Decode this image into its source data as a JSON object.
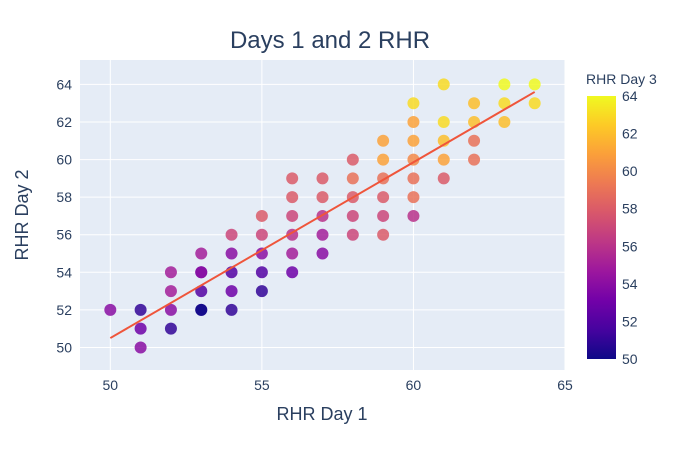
{
  "chart_data": {
    "type": "scatter",
    "title": "Days 1 and 2 RHR",
    "xlabel": "RHR Day 1",
    "ylabel": "RHR Day 2",
    "xlim": [
      49,
      65
    ],
    "ylim": [
      48.8,
      65.3
    ],
    "x_ticks": [
      50,
      55,
      60,
      65
    ],
    "y_ticks": [
      50,
      52,
      54,
      56,
      58,
      60,
      62,
      64
    ],
    "grid": true,
    "colorbar": {
      "title": "RHR Day 3",
      "range": [
        50,
        64
      ],
      "ticks": [
        50,
        52,
        54,
        56,
        58,
        60,
        62,
        64
      ],
      "colorscale": [
        "#0d0887",
        "#46039f",
        "#7201a8",
        "#9c179e",
        "#bd3786",
        "#d8576b",
        "#ed7953",
        "#fb9f3a",
        "#fdca26",
        "#f0f921"
      ]
    },
    "trendline": {
      "x": [
        50,
        64
      ],
      "y": [
        50.5,
        63.6
      ],
      "color": "#ef553b"
    },
    "points": [
      [
        50,
        52,
        54
      ],
      [
        51,
        52,
        51
      ],
      [
        51,
        51,
        53
      ],
      [
        51,
        50,
        54
      ],
      [
        52,
        54,
        55
      ],
      [
        52,
        53,
        55
      ],
      [
        52,
        52,
        54
      ],
      [
        52,
        51,
        51
      ],
      [
        53,
        55,
        55
      ],
      [
        53,
        54,
        53
      ],
      [
        53,
        54,
        54
      ],
      [
        53,
        53,
        52
      ],
      [
        53,
        52,
        51
      ],
      [
        53,
        52,
        50
      ],
      [
        54,
        56,
        57
      ],
      [
        54,
        55,
        54
      ],
      [
        54,
        54,
        52
      ],
      [
        54,
        53,
        53
      ],
      [
        54,
        52,
        51
      ],
      [
        55,
        57,
        58
      ],
      [
        55,
        56,
        57
      ],
      [
        55,
        55,
        54
      ],
      [
        55,
        54,
        52
      ],
      [
        55,
        53,
        51
      ],
      [
        56,
        59,
        58
      ],
      [
        56,
        58,
        58
      ],
      [
        56,
        57,
        57
      ],
      [
        56,
        56,
        56
      ],
      [
        56,
        55,
        55
      ],
      [
        56,
        54,
        53
      ],
      [
        57,
        59,
        58
      ],
      [
        57,
        58,
        58
      ],
      [
        57,
        57,
        56
      ],
      [
        57,
        56,
        55
      ],
      [
        57,
        55,
        54
      ],
      [
        58,
        60,
        58
      ],
      [
        58,
        59,
        59
      ],
      [
        58,
        58,
        58
      ],
      [
        58,
        57,
        57
      ],
      [
        58,
        56,
        57
      ],
      [
        59,
        61,
        61
      ],
      [
        59,
        60,
        61
      ],
      [
        59,
        59,
        59
      ],
      [
        59,
        58,
        58
      ],
      [
        59,
        57,
        57
      ],
      [
        59,
        56,
        58
      ],
      [
        60,
        63,
        63
      ],
      [
        60,
        62,
        61
      ],
      [
        60,
        61,
        61
      ],
      [
        60,
        60,
        60
      ],
      [
        60,
        59,
        59
      ],
      [
        60,
        58,
        59
      ],
      [
        60,
        57,
        56
      ],
      [
        61,
        64,
        63
      ],
      [
        61,
        62,
        63
      ],
      [
        61,
        61,
        62
      ],
      [
        61,
        60,
        61
      ],
      [
        61,
        59,
        58
      ],
      [
        62,
        63,
        62
      ],
      [
        62,
        62,
        62
      ],
      [
        62,
        61,
        59
      ],
      [
        62,
        60,
        59
      ],
      [
        63,
        64,
        64
      ],
      [
        63,
        63,
        63
      ],
      [
        63,
        62,
        62
      ],
      [
        64,
        64,
        64
      ],
      [
        64,
        63,
        63
      ]
    ]
  }
}
